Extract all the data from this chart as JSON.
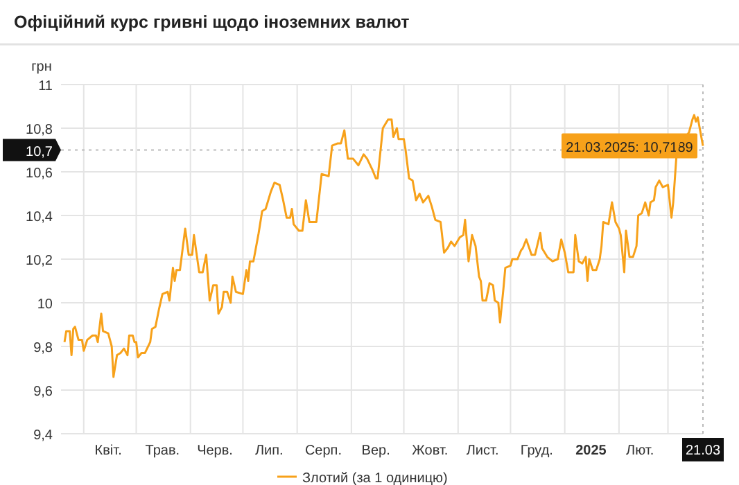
{
  "chart_data": {
    "type": "line",
    "title": "Офіційний курс гривні щодо іноземних валют",
    "ylabel": "грн",
    "legend": "bottom",
    "grid": true,
    "marker": "none",
    "line_style": "solid",
    "xlim": [
      "2024-03-19",
      "2025-03-21"
    ],
    "xticks": [
      {
        "value": "2024-04-01",
        "label": null
      },
      {
        "value": "2024-04-15",
        "label": "Квіт."
      },
      {
        "value": "2024-05-01",
        "label": null
      },
      {
        "value": "2024-05-16",
        "label": "Трав."
      },
      {
        "value": "2024-06-01",
        "label": null
      },
      {
        "value": "2024-06-15",
        "label": "Черв."
      },
      {
        "value": "2024-07-01",
        "label": null
      },
      {
        "value": "2024-07-16",
        "label": "Лип."
      },
      {
        "value": "2024-08-01",
        "label": null
      },
      {
        "value": "2024-08-16",
        "label": "Серп."
      },
      {
        "value": "2024-09-01",
        "label": null
      },
      {
        "value": "2024-09-15",
        "label": "Вер."
      },
      {
        "value": "2024-10-01",
        "label": null
      },
      {
        "value": "2024-10-16",
        "label": "Жовт."
      },
      {
        "value": "2024-11-01",
        "label": null
      },
      {
        "value": "2024-11-15",
        "label": "Лист."
      },
      {
        "value": "2024-12-01",
        "label": null
      },
      {
        "value": "2024-12-16",
        "label": "Груд."
      },
      {
        "value": "2025-01-01",
        "label": null
      },
      {
        "value": "2025-01-16",
        "label": "2025"
      },
      {
        "value": "2025-02-01",
        "label": null
      },
      {
        "value": "2025-02-13",
        "label": "Лют."
      },
      {
        "value": "2025-03-01",
        "label": null
      },
      {
        "value": "2025-03-21",
        "label": "21.03"
      }
    ],
    "ylim": [
      9.4,
      11
    ],
    "yticks": [
      {
        "value": 9.4,
        "label": "9,4"
      },
      {
        "value": 9.6,
        "label": "9,6"
      },
      {
        "value": 9.8,
        "label": "9,8"
      },
      10,
      {
        "value": 10.2,
        "label": "10,2"
      },
      {
        "value": 10.4,
        "label": "10,4"
      },
      {
        "value": 10.6,
        "label": "10,6"
      },
      {
        "value": 10.7,
        "label": "10,7"
      },
      {
        "value": 10.8,
        "label": "10,8"
      },
      11
    ],
    "ref_lines": [
      {
        "axis": "y",
        "value": 10.7,
        "line_style": "dotted",
        "color": "#bbbbbb"
      },
      {
        "axis": "x",
        "value": "2025-03-21",
        "line_style": "dotted",
        "color": "#bbbbbb"
      }
    ],
    "annotations": [
      {
        "text": "21.03.2025: 10,7189",
        "x": "2025-03-21",
        "y": 10.7189
      }
    ],
    "series": [
      {
        "name": "Злотий (за 1 одиницю)",
        "color": "#f7a11a",
        "x": [
          "2024-03-21",
          "2024-03-22",
          "2024-03-24",
          "2024-03-25",
          "2024-03-26",
          "2024-03-27",
          "2024-03-29",
          "2024-03-31",
          "2024-04-01",
          "2024-04-03",
          "2024-04-06",
          "2024-04-08",
          "2024-04-09",
          "2024-04-11",
          "2024-04-12",
          "2024-04-15",
          "2024-04-17",
          "2024-04-18",
          "2024-04-20",
          "2024-04-22",
          "2024-04-24",
          "2024-04-26",
          "2024-04-27",
          "2024-04-29",
          "2024-04-30",
          "2024-05-01",
          "2024-05-02",
          "2024-05-04",
          "2024-05-06",
          "2024-05-09",
          "2024-05-10",
          "2024-05-12",
          "2024-05-14",
          "2024-05-16",
          "2024-05-19",
          "2024-05-20",
          "2024-05-22",
          "2024-05-23",
          "2024-05-24",
          "2024-05-26",
          "2024-05-29",
          "2024-05-31",
          "2024-06-02",
          "2024-06-03",
          "2024-06-06",
          "2024-06-08",
          "2024-06-10",
          "2024-06-12",
          "2024-06-14",
          "2024-06-16",
          "2024-06-17",
          "2024-06-19",
          "2024-06-20",
          "2024-06-22",
          "2024-06-24",
          "2024-06-25",
          "2024-06-27",
          "2024-07-01",
          "2024-07-03",
          "2024-07-04",
          "2024-07-05",
          "2024-07-07",
          "2024-07-10",
          "2024-07-12",
          "2024-07-14",
          "2024-07-17",
          "2024-07-19",
          "2024-07-22",
          "2024-07-24",
          "2024-07-26",
          "2024-07-28",
          "2024-07-29",
          "2024-07-30",
          "2024-08-02",
          "2024-08-04",
          "2024-08-06",
          "2024-08-08",
          "2024-08-12",
          "2024-08-15",
          "2024-08-19",
          "2024-08-21",
          "2024-08-24",
          "2024-08-26",
          "2024-08-28",
          "2024-08-30",
          "2024-09-02",
          "2024-09-05",
          "2024-09-08",
          "2024-09-10",
          "2024-09-13",
          "2024-09-15",
          "2024-09-16",
          "2024-09-19",
          "2024-09-22",
          "2024-09-24",
          "2024-09-25",
          "2024-09-27",
          "2024-09-28",
          "2024-10-01",
          "2024-10-02",
          "2024-10-04",
          "2024-10-06",
          "2024-10-08",
          "2024-10-10",
          "2024-10-12",
          "2024-10-15",
          "2024-10-17",
          "2024-10-19",
          "2024-10-22",
          "2024-10-24",
          "2024-10-26",
          "2024-10-28",
          "2024-10-30",
          "2024-11-02",
          "2024-11-04",
          "2024-11-05",
          "2024-11-07",
          "2024-11-09",
          "2024-11-11",
          "2024-11-13",
          "2024-11-14",
          "2024-11-15",
          "2024-11-17",
          "2024-11-19",
          "2024-11-21",
          "2024-11-22",
          "2024-11-24",
          "2024-11-25",
          "2024-11-27",
          "2024-11-28",
          "2024-12-01",
          "2024-12-02",
          "2024-12-05",
          "2024-12-07",
          "2024-12-08",
          "2024-12-10",
          "2024-12-13",
          "2024-12-15",
          "2024-12-18",
          "2024-12-19",
          "2024-12-22",
          "2024-12-25",
          "2024-12-28",
          "2024-12-30",
          "2025-01-01",
          "2025-01-03",
          "2025-01-06",
          "2025-01-07",
          "2025-01-09",
          "2025-01-11",
          "2025-01-13",
          "2025-01-14",
          "2025-01-15",
          "2025-01-17",
          "2025-01-19",
          "2025-01-21",
          "2025-01-22",
          "2025-01-23",
          "2025-01-26",
          "2025-01-28",
          "2025-01-30",
          "2025-02-01",
          "2025-02-02",
          "2025-02-04",
          "2025-02-05",
          "2025-02-07",
          "2025-02-09",
          "2025-02-11",
          "2025-02-12",
          "2025-02-14",
          "2025-02-16",
          "2025-02-18",
          "2025-02-19",
          "2025-02-21",
          "2025-02-22",
          "2025-02-24",
          "2025-02-26",
          "2025-03-01",
          "2025-03-03",
          "2025-03-04",
          "2025-03-06",
          "2025-03-08",
          "2025-03-09",
          "2025-03-11",
          "2025-03-13",
          "2025-03-15",
          "2025-03-16",
          "2025-03-17",
          "2025-03-18",
          "2025-03-21"
        ],
        "values": [
          9.82,
          9.87,
          9.87,
          9.76,
          9.88,
          9.89,
          9.83,
          9.83,
          9.78,
          9.83,
          9.85,
          9.85,
          9.82,
          9.95,
          9.87,
          9.86,
          9.8,
          9.66,
          9.76,
          9.77,
          9.79,
          9.76,
          9.85,
          9.85,
          9.82,
          9.82,
          9.75,
          9.77,
          9.77,
          9.82,
          9.88,
          9.89,
          9.97,
          10.04,
          10.05,
          10.01,
          10.16,
          10.1,
          10.15,
          10.15,
          10.34,
          10.22,
          10.22,
          10.31,
          10.14,
          10.14,
          10.22,
          10.01,
          10.08,
          10.08,
          9.95,
          9.98,
          10.05,
          10.05,
          10,
          10.12,
          10.05,
          10.04,
          10.15,
          10.1,
          10.19,
          10.19,
          10.32,
          10.42,
          10.43,
          10.51,
          10.55,
          10.54,
          10.47,
          10.39,
          10.39,
          10.43,
          10.36,
          10.33,
          10.33,
          10.47,
          10.37,
          10.37,
          10.59,
          10.58,
          10.72,
          10.73,
          10.73,
          10.79,
          10.66,
          10.66,
          10.63,
          10.68,
          10.66,
          10.61,
          10.57,
          10.57,
          10.8,
          10.84,
          10.84,
          10.76,
          10.8,
          10.75,
          10.75,
          10.7,
          10.57,
          10.56,
          10.47,
          10.5,
          10.46,
          10.49,
          10.44,
          10.38,
          10.37,
          10.23,
          10.25,
          10.28,
          10.26,
          10.3,
          10.31,
          10.38,
          10.19,
          10.31,
          10.26,
          10.12,
          10.1,
          10.01,
          10.01,
          10.09,
          10.08,
          10.01,
          10,
          9.91,
          10.07,
          10.16,
          10.17,
          10.2,
          10.2,
          10.24,
          10.25,
          10.29,
          10.22,
          10.22,
          10.32,
          10.25,
          10.21,
          10.19,
          10.2,
          10.29,
          10.23,
          10.14,
          10.14,
          10.31,
          10.19,
          10.18,
          10.21,
          10.1,
          10.2,
          10.15,
          10.15,
          10.2,
          10.26,
          10.37,
          10.36,
          10.46,
          10.37,
          10.34,
          10.31,
          10.14,
          10.33,
          10.21,
          10.21,
          10.26,
          10.4,
          10.41,
          10.46,
          10.4,
          10.46,
          10.47,
          10.53,
          10.56,
          10.53,
          10.54,
          10.39,
          10.46,
          10.69,
          10.76,
          10.77,
          10.76,
          10.78,
          10.84,
          10.86,
          10.83,
          10.85,
          10.7189
        ]
      }
    ]
  }
}
